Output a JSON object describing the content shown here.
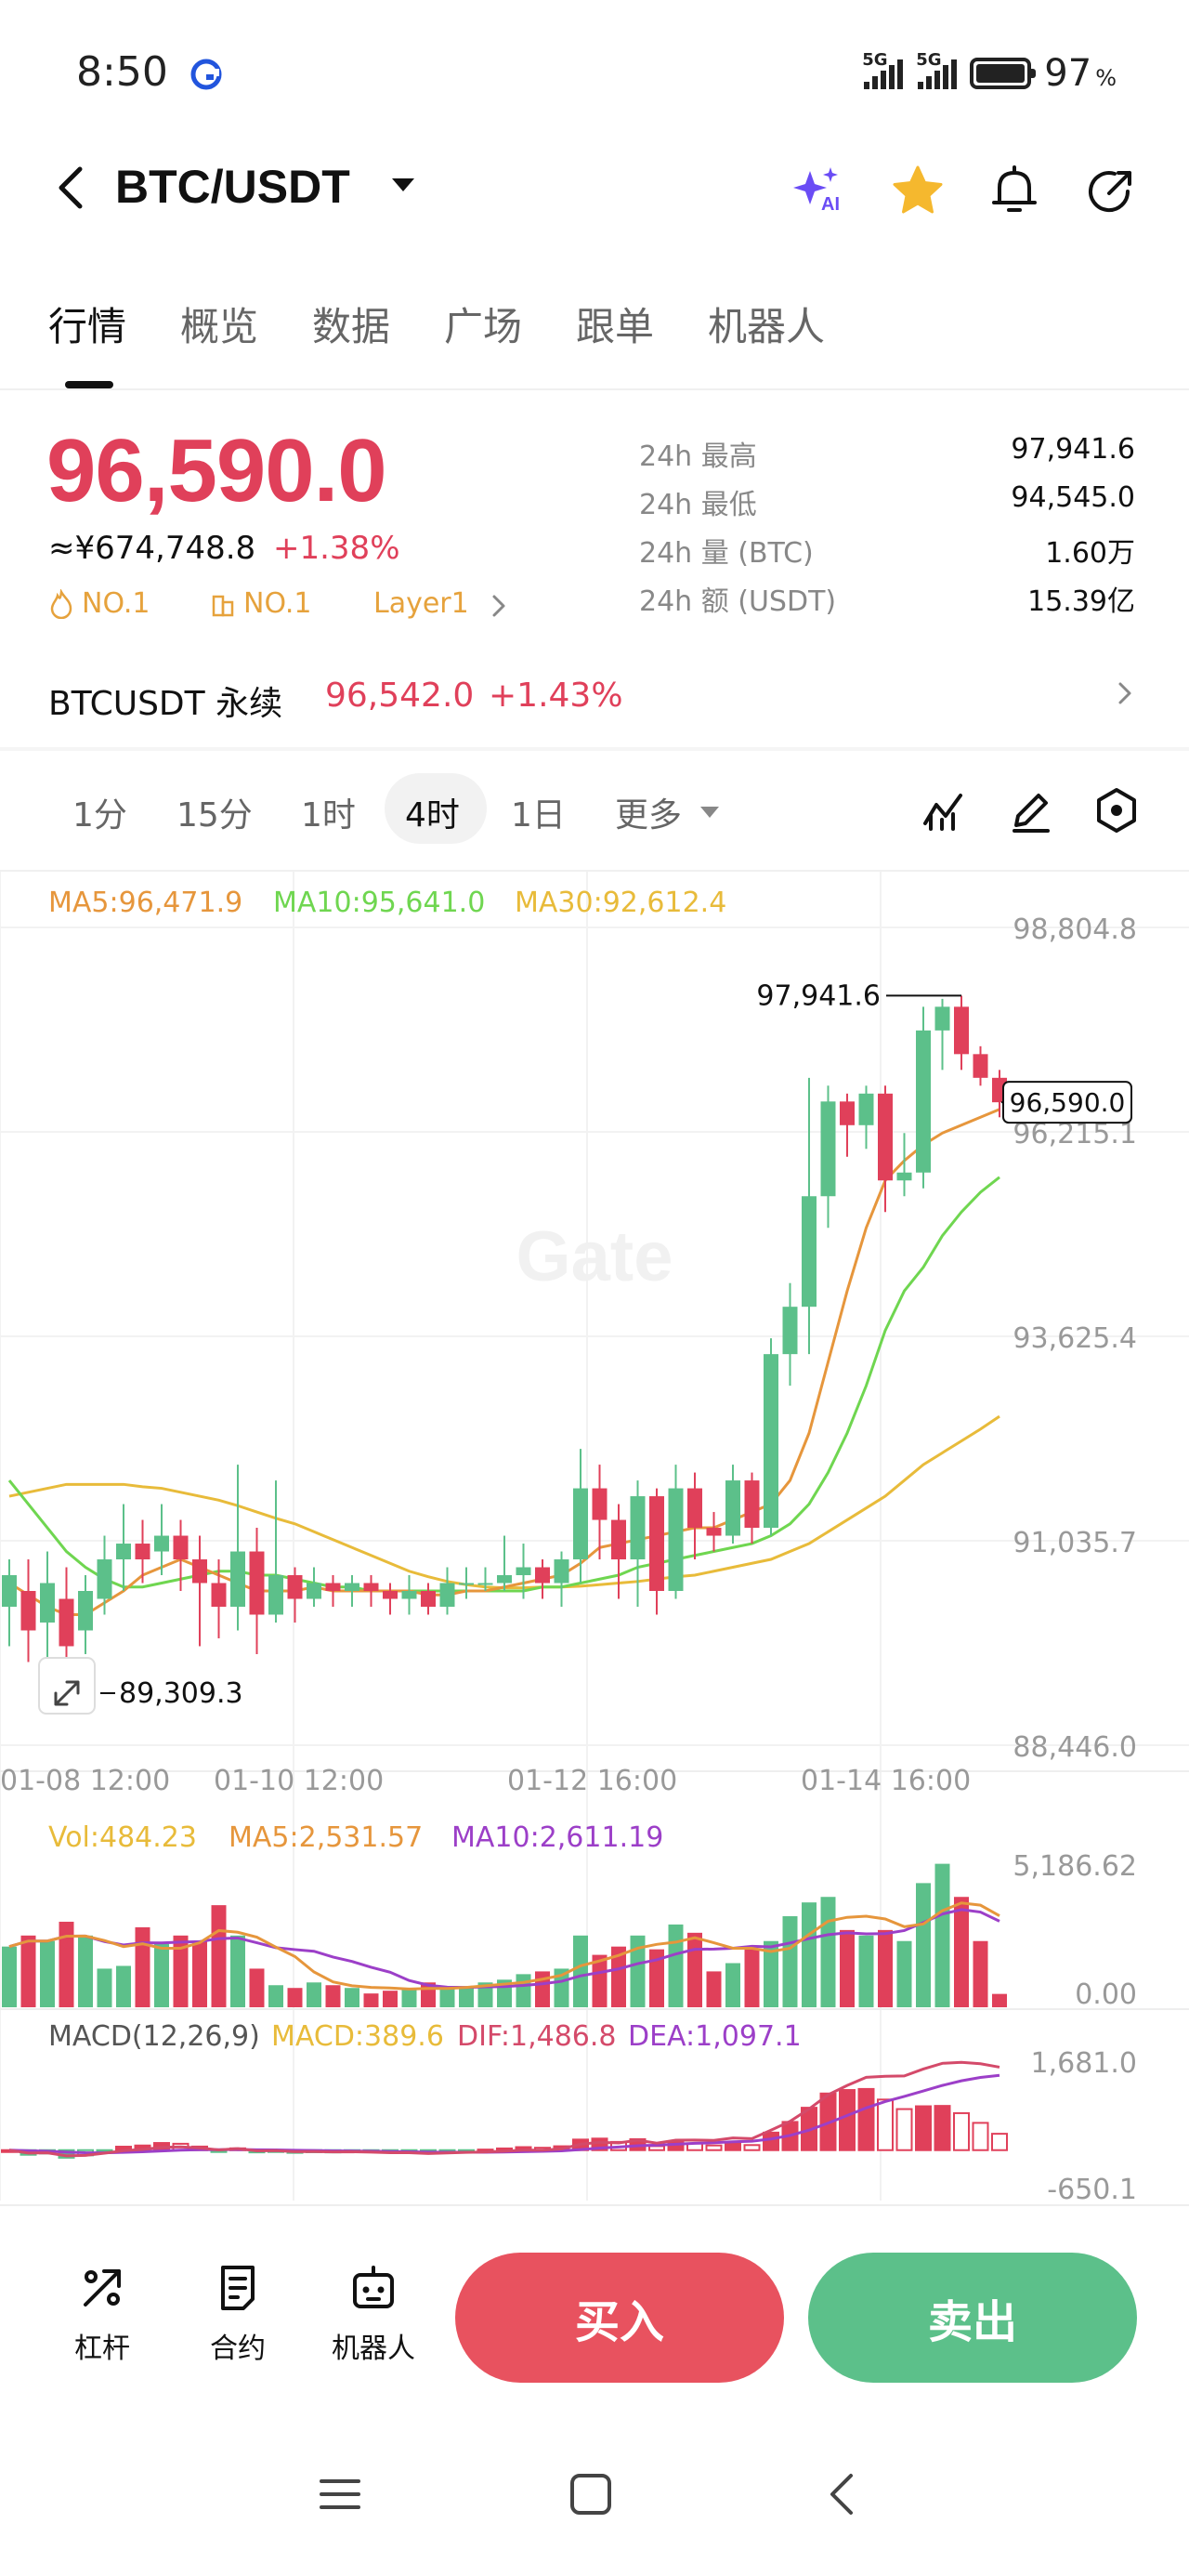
{
  "status_bar": {
    "time": "8:50",
    "signal_1_label": "5G",
    "signal_2_label": "5G",
    "battery": "97",
    "battery_unit": "%"
  },
  "header": {
    "pair": "BTC/USDT",
    "ai_label": "AI",
    "icons": [
      "back-icon",
      "ai-sparkle-icon",
      "star-icon",
      "bell-icon",
      "share-icon"
    ]
  },
  "tabs": [
    "行情",
    "概览",
    "数据",
    "广场",
    "跟单",
    "机器人"
  ],
  "active_tab": "行情",
  "price": {
    "last": "96,590.0",
    "cny": "≈¥674,748.8",
    "change": "+1.38%",
    "tags": [
      "NO.1",
      "NO.1",
      "Layer1"
    ],
    "color_up": "#e0405a",
    "color_down": "#5cc08a"
  },
  "stats": [
    {
      "label": "24h  最高",
      "value": "97,941.6"
    },
    {
      "label": "24h  最低",
      "value": "94,545.0"
    },
    {
      "label": "24h  量 (BTC)",
      "value": "1.60万"
    },
    {
      "label": "24h  额 (USDT)",
      "value": "15.39亿"
    }
  ],
  "perpetual": {
    "name": "BTCUSDT 永续",
    "price": "96,542.0",
    "change": "+1.43%"
  },
  "intervals": [
    "1分",
    "15分",
    "1时",
    "4时",
    "1日",
    "更多"
  ],
  "active_interval": "4时",
  "chart_data": {
    "type": "candlestick",
    "ma_legend": {
      "ma5": "MA5:96,471.9",
      "ma10": "MA10:95,641.0",
      "ma30": "MA30:92,612.4"
    },
    "y_ticks": [
      "98,804.8",
      "96,215.1",
      "93,625.4",
      "91,035.7",
      "88,446.0"
    ],
    "x_ticks": [
      "01-08 12:00",
      "01-10 12:00",
      "01-12 16:00",
      "01-14 16:00"
    ],
    "last_price_label": "96,590.0",
    "high_label": "97,941.6",
    "low_label": "89,309.3",
    "watermark": "Gate",
    "candles": [
      [
        90200,
        90600,
        89700,
        90800
      ],
      [
        90400,
        89900,
        89500,
        90800
      ],
      [
        90000,
        90500,
        89400,
        90900
      ],
      [
        90300,
        89700,
        89300,
        90700
      ],
      [
        89900,
        90400,
        89600,
        90600
      ],
      [
        90300,
        90800,
        90100,
        91100
      ],
      [
        90800,
        91000,
        90400,
        91500
      ],
      [
        91000,
        90800,
        90500,
        91300
      ],
      [
        90900,
        91100,
        90600,
        91500
      ],
      [
        91100,
        90800,
        90400,
        91300
      ],
      [
        90800,
        90500,
        89700,
        91100
      ],
      [
        90500,
        90200,
        89800,
        90800
      ],
      [
        90200,
        90900,
        89900,
        92000
      ],
      [
        90900,
        90100,
        89600,
        91200
      ],
      [
        90100,
        90600,
        90000,
        91800
      ],
      [
        90600,
        90300,
        90000,
        90700
      ],
      [
        90300,
        90500,
        90200,
        90700
      ],
      [
        90500,
        90400,
        90200,
        90600
      ],
      [
        90400,
        90500,
        90200,
        90600
      ],
      [
        90500,
        90400,
        90200,
        90600
      ],
      [
        90400,
        90300,
        90100,
        90500
      ],
      [
        90300,
        90400,
        90100,
        90600
      ],
      [
        90400,
        90200,
        90100,
        90500
      ],
      [
        90200,
        90500,
        90100,
        90700
      ],
      [
        90500,
        90500,
        90300,
        90700
      ],
      [
        90500,
        90500,
        90400,
        90700
      ],
      [
        90500,
        90600,
        90400,
        91100
      ],
      [
        90600,
        90700,
        90300,
        91000
      ],
      [
        90700,
        90500,
        90300,
        90800
      ],
      [
        90500,
        90800,
        90200,
        90900
      ],
      [
        90800,
        91700,
        90500,
        92200
      ],
      [
        91700,
        91300,
        90800,
        92000
      ],
      [
        91300,
        90800,
        90300,
        91500
      ],
      [
        90800,
        91600,
        90200,
        91800
      ],
      [
        91600,
        90400,
        90100,
        91700
      ],
      [
        90400,
        91700,
        90300,
        92000
      ],
      [
        91700,
        91200,
        90800,
        91900
      ],
      [
        91200,
        91100,
        90900,
        91400
      ],
      [
        91100,
        91800,
        91000,
        92000
      ],
      [
        91800,
        91200,
        91000,
        91900
      ],
      [
        91200,
        93400,
        91100,
        93600
      ],
      [
        93400,
        94000,
        93000,
        94300
      ],
      [
        94000,
        95400,
        93400,
        96900
      ],
      [
        95400,
        96600,
        95000,
        96800
      ],
      [
        96600,
        96300,
        95900,
        96700
      ],
      [
        96300,
        96700,
        96000,
        96800
      ],
      [
        96700,
        95600,
        95200,
        96800
      ],
      [
        95600,
        95700,
        95400,
        96200
      ],
      [
        95700,
        97500,
        95500,
        97800
      ],
      [
        97500,
        97800,
        97000,
        97900
      ],
      [
        97800,
        97200,
        97000,
        97940
      ],
      [
        97200,
        96900,
        96800,
        97300
      ],
      [
        96900,
        96590,
        96400,
        97000
      ]
    ],
    "ma5": [
      90500,
      90350,
      90200,
      90100,
      90100,
      90250,
      90400,
      90600,
      90700,
      90800,
      90700,
      90600,
      90500,
      90400,
      90400,
      90400,
      90450,
      90400,
      90400,
      90400,
      90400,
      90400,
      90350,
      90350,
      90400,
      90400,
      90450,
      90500,
      90550,
      90600,
      90750,
      90950,
      91000,
      91050,
      91100,
      91150,
      91200,
      91200,
      91300,
      91400,
      91500,
      91800,
      92400,
      93300,
      94200,
      95000,
      95600,
      95850,
      96050,
      96200,
      96300,
      96400,
      96500
    ],
    "ma10": [
      91800,
      91500,
      91200,
      90900,
      90700,
      90550,
      90450,
      90450,
      90500,
      90550,
      90600,
      90650,
      90650,
      90600,
      90600,
      90550,
      90500,
      90450,
      90450,
      90400,
      90400,
      90400,
      90400,
      90400,
      90400,
      90400,
      90400,
      90400,
      90450,
      90450,
      90500,
      90550,
      90600,
      90700,
      90750,
      90800,
      90850,
      90900,
      90950,
      91000,
      91100,
      91250,
      91500,
      91900,
      92400,
      93000,
      93700,
      94200,
      94500,
      94900,
      95200,
      95450,
      95641
    ],
    "ma30": [
      91600,
      91650,
      91700,
      91750,
      91750,
      91750,
      91750,
      91720,
      91700,
      91650,
      91600,
      91550,
      91480,
      91400,
      91320,
      91250,
      91150,
      91050,
      90950,
      90850,
      90750,
      90650,
      90580,
      90520,
      90480,
      90450,
      90440,
      90440,
      90450,
      90450,
      90460,
      90480,
      90500,
      90520,
      90550,
      90580,
      90600,
      90650,
      90700,
      90750,
      90800,
      90900,
      91000,
      91150,
      91300,
      91450,
      91600,
      91800,
      92000,
      92150,
      92300,
      92450,
      92612
    ]
  },
  "volume": {
    "legend_vol": "Vol:484.23",
    "legend_ma5": "MA5:2,531.57",
    "legend_ma10": "MA10:2,611.19",
    "y_ticks": [
      "5,186.62",
      "0.00"
    ],
    "values": [
      2200,
      2600,
      2400,
      3100,
      2600,
      1400,
      1500,
      2900,
      2300,
      2600,
      2400,
      3700,
      2600,
      1400,
      800,
      700,
      900,
      800,
      700,
      500,
      600,
      700,
      900,
      700,
      700,
      900,
      1000,
      1200,
      1300,
      1400,
      2600,
      1900,
      2200,
      2600,
      2100,
      3000,
      2700,
      1300,
      1600,
      2100,
      2400,
      3300,
      3800,
      4000,
      2800,
      2600,
      2800,
      2400,
      4500,
      5200,
      4000,
      2400,
      484
    ]
  },
  "macd": {
    "legend_title": "MACD(12,26,9)",
    "legend_macd": "MACD:389.6",
    "legend_dif": "DIF:1,486.8",
    "legend_dea": "DEA:1,097.1",
    "y_ticks": [
      "1,681.0",
      "-650.1"
    ]
  },
  "bottom_bar": {
    "leverage": "杠杆",
    "contract": "合约",
    "robot": "机器人",
    "buy": "买入",
    "sell": "卖出"
  }
}
